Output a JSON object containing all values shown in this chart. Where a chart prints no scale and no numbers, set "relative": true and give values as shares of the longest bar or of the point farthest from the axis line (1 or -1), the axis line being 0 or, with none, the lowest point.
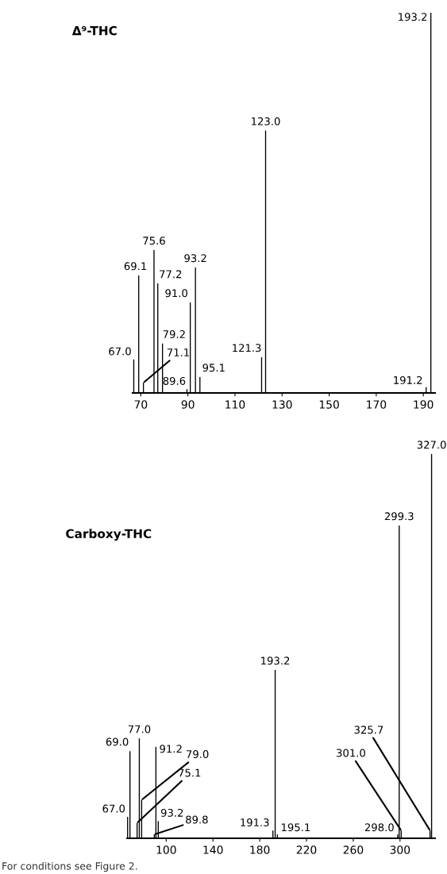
{
  "chart_data": [
    {
      "type": "bar",
      "title": "Δ⁹-THC",
      "relative": true,
      "tick_labels": "x",
      "color": "#000000",
      "x": [
        67.0,
        69.1,
        71.1,
        75.6,
        77.2,
        79.2,
        89.6,
        91.0,
        93.2,
        95.1,
        121.3,
        123.0,
        191.2,
        193.2
      ],
      "values": [
        0.088,
        0.309,
        0.027,
        0.376,
        0.288,
        0.13,
        0.01,
        0.238,
        0.33,
        0.042,
        0.094,
        0.69,
        0.015,
        1
      ],
      "xlim": [
        66.5,
        195
      ],
      "xticks": [
        70,
        90,
        110,
        130,
        150,
        170,
        190
      ],
      "annotations": [
        {
          "text": "67.0",
          "x": 67.0,
          "y": 0.088
        },
        {
          "text": "69.1",
          "x": 69.1,
          "y": 0.309
        },
        {
          "text": "71.1",
          "x": 71.1,
          "y": 0.027
        },
        {
          "text": "75.6",
          "x": 75.6,
          "y": 0.376
        },
        {
          "text": "77.2",
          "x": 77.2,
          "y": 0.288
        },
        {
          "text": "79.2",
          "x": 79.2,
          "y": 0.13
        },
        {
          "text": "89.6",
          "x": 89.6,
          "y": 0.01
        },
        {
          "text": "91.0",
          "x": 91.0,
          "y": 0.238
        },
        {
          "text": "93.2",
          "x": 93.2,
          "y": 0.33
        },
        {
          "text": "95.1",
          "x": 95.1,
          "y": 0.042
        },
        {
          "text": "121.3",
          "x": 121.3,
          "y": 0.094
        },
        {
          "text": "123.0",
          "x": 123.0,
          "y": 0.69
        },
        {
          "text": "191.2",
          "x": 191.2,
          "y": 0.015
        },
        {
          "text": "193.2",
          "x": 193.2,
          "y": 1
        }
      ]
    },
    {
      "type": "bar",
      "title": "Carboxy-THC",
      "relative": true,
      "tick_labels": "x",
      "color": "#000000",
      "x": [
        67.0,
        69.0,
        75.1,
        77.0,
        79.0,
        89.8,
        91.2,
        93.2,
        191.3,
        193.2,
        195.1,
        298.0,
        299.3,
        301.0,
        325.7,
        327.0
      ],
      "values": [
        0.056,
        0.227,
        0.04,
        0.26,
        0.1,
        0.01,
        0.238,
        0.045,
        0.02,
        0.438,
        0.01,
        0.01,
        0.814,
        0.02,
        0.02,
        1
      ],
      "xlim": [
        66.5,
        330
      ],
      "xticks": [
        100,
        140,
        180,
        220,
        260,
        300
      ],
      "annotations": [
        {
          "text": "67.0",
          "x": 67.0,
          "y": 0.056
        },
        {
          "text": "69.0",
          "x": 69.0,
          "y": 0.227
        },
        {
          "text": "75.1",
          "x": 75.1,
          "y": 0.04
        },
        {
          "text": "77.0",
          "x": 77.0,
          "y": 0.26
        },
        {
          "text": "79.0",
          "x": 79.0,
          "y": 0.1
        },
        {
          "text": "89.8",
          "x": 89.8,
          "y": 0.01
        },
        {
          "text": "91.2",
          "x": 91.2,
          "y": 0.238
        },
        {
          "text": "93.2",
          "x": 93.2,
          "y": 0.045
        },
        {
          "text": "191.3",
          "x": 191.3,
          "y": 0.02
        },
        {
          "text": "193.2",
          "x": 193.2,
          "y": 0.438
        },
        {
          "text": "195.1",
          "x": 195.1,
          "y": 0.01
        },
        {
          "text": "298.0",
          "x": 298.0,
          "y": 0.01
        },
        {
          "text": "299.3",
          "x": 299.3,
          "y": 0.814
        },
        {
          "text": "301.0",
          "x": 301.0,
          "y": 0.02
        },
        {
          "text": "325.7",
          "x": 325.7,
          "y": 0.02
        },
        {
          "text": "327.0",
          "x": 327.0,
          "y": 1
        },
        "For conditions see Figure 2."
      ]
    }
  ]
}
